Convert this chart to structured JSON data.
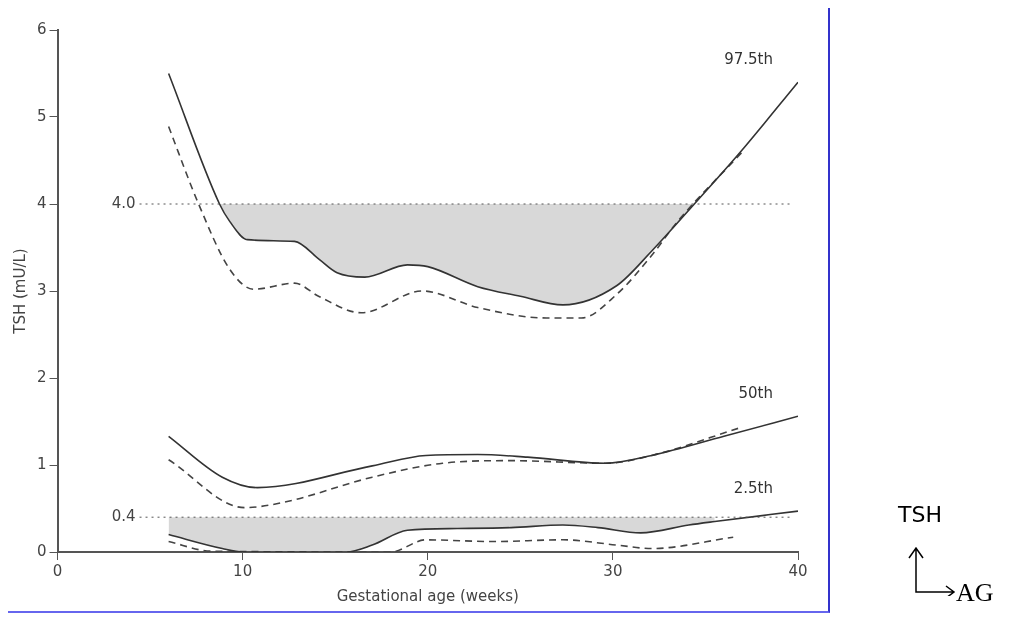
{
  "chart_data": {
    "type": "line",
    "xlabel": "Gestational age (weeks)",
    "ylabel": "TSH (mU/L)",
    "xlim": [
      0,
      40
    ],
    "xticks": [
      0,
      10,
      20,
      30,
      40
    ],
    "ylim": [
      0,
      6
    ],
    "yticks": [
      0,
      1,
      2,
      3,
      4,
      5,
      6
    ],
    "grid": false,
    "legend": false,
    "marker": "none",
    "series": [
      {
        "name": "97.5th",
        "color": "#333333",
        "line_style": "solid",
        "x": [
          6,
          8.75,
          9.3,
          10.25,
          12.8,
          14.1,
          15.1,
          16.6,
          18.9,
          20,
          22.7,
          25,
          27.3,
          30.2,
          32.1,
          34.4,
          36.9,
          40
        ],
        "values": [
          5.5,
          4.0,
          3.8,
          3.59,
          3.57,
          3.37,
          3.21,
          3.16,
          3.3,
          3.28,
          3.05,
          2.94,
          2.84,
          3.06,
          3.46,
          4.0,
          4.6,
          5.4
        ],
        "lower": [
          null,
          4.0,
          3.8,
          3.59,
          3.57,
          3.37,
          3.21,
          3.16,
          3.3,
          3.28,
          3.05,
          2.94,
          2.84,
          3.06,
          3.46,
          4.0,
          null,
          null
        ],
        "upper": [
          null,
          4,
          4,
          4,
          4,
          4,
          4,
          4,
          4,
          4,
          4,
          4,
          4,
          4,
          4,
          4,
          null,
          null
        ]
      },
      {
        "color": "#444444",
        "line_style": "dashed",
        "x": [
          6,
          7.6,
          9.3,
          10.6,
          12.8,
          14.1,
          16.4,
          19.7,
          22.7,
          26.4,
          28.3,
          30.2,
          32.1,
          33.5,
          37
        ],
        "values": [
          4.89,
          4.01,
          3.25,
          3.02,
          3.09,
          2.94,
          2.75,
          3.0,
          2.81,
          2.69,
          2.69,
          2.96,
          3.41,
          3.8,
          4.6
        ]
      },
      {
        "name": "50th",
        "color": "#333333",
        "line_style": "solid",
        "x": [
          6,
          8.9,
          10.8,
          17,
          19.9,
          22.7,
          25.4,
          29.6,
          32.1,
          36,
          40
        ],
        "values": [
          1.33,
          0.86,
          0.74,
          0.99,
          1.11,
          1.12,
          1.09,
          1.02,
          1.11,
          1.33,
          1.56
        ]
      },
      {
        "color": "#444444",
        "line_style": "dashed",
        "x": [
          6,
          10.1,
          12.2,
          17,
          20.8,
          24.5,
          29.6,
          32.1,
          36.9
        ],
        "values": [
          1.06,
          0.51,
          0.57,
          0.86,
          1.02,
          1.05,
          1.02,
          1.11,
          1.43
        ]
      },
      {
        "name": "2.5th",
        "color": "#333333",
        "line_style": "solid",
        "x": [
          6,
          8.9,
          10,
          15.6,
          17,
          18.9,
          21.6,
          24.5,
          27.3,
          29.2,
          31.5,
          34.1,
          35.5,
          40
        ],
        "values": [
          0.2,
          0.04,
          0,
          0,
          0.08,
          0.25,
          0.27,
          0.28,
          0.31,
          0.28,
          0.22,
          0.31,
          0.35,
          0.47
        ],
        "lower": [
          0.2,
          0.04,
          0,
          0,
          0.08,
          0.25,
          0.27,
          0.28,
          0.31,
          0.28,
          0.22,
          0.31,
          0.35,
          null
        ],
        "upper": [
          0.4,
          0.4,
          0.4,
          0.4,
          0.4,
          0.4,
          0.4,
          0.4,
          0.4,
          0.4,
          0.4,
          0.4,
          0.4,
          null
        ]
      },
      {
        "color": "#444444",
        "line_style": "dashed",
        "x": [
          6,
          8.3,
          18,
          19.9,
          23.5,
          27.3,
          30.2,
          32.1,
          36.5
        ],
        "values": [
          0.12,
          0.01,
          0,
          0.14,
          0.12,
          0.14,
          0.08,
          0.04,
          0.17
        ]
      }
    ],
    "ref_lines": [
      {
        "axis": "y",
        "value": 4.0,
        "label": "4.0",
        "line_style": "dotted",
        "color": "#555555"
      },
      {
        "axis": "y",
        "value": 0.4,
        "label": "0.4",
        "line_style": "dotted",
        "color": "#555555"
      }
    ],
    "annotations": [
      "TSH",
      "AG"
    ]
  }
}
